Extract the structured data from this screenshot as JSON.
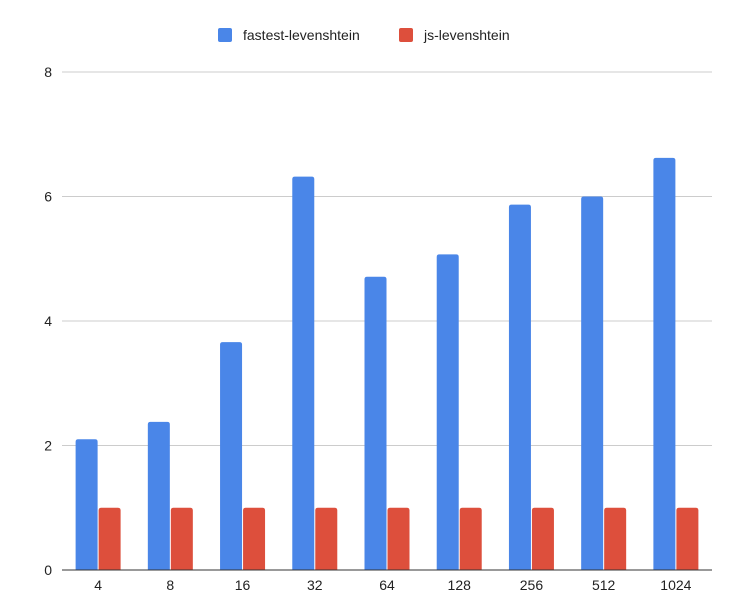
{
  "chart_data": {
    "type": "bar",
    "title": "",
    "xlabel": "",
    "ylabel": "",
    "categories": [
      "4",
      "8",
      "16",
      "32",
      "64",
      "128",
      "256",
      "512",
      "1024"
    ],
    "series": [
      {
        "name": "fastest-levenshtein",
        "color": "#4a86e8",
        "values": [
          2.1,
          2.38,
          3.66,
          6.32,
          4.71,
          5.07,
          5.87,
          6.0,
          6.62
        ]
      },
      {
        "name": "js-levenshtein",
        "color": "#dd4f3c",
        "values": [
          1,
          1,
          1,
          1,
          1,
          1,
          1,
          1,
          1
        ]
      }
    ],
    "ylim": [
      0,
      8
    ],
    "yticks": [
      "0",
      "2",
      "4",
      "6",
      "8"
    ],
    "grid": true,
    "legend_position": "top-center"
  }
}
